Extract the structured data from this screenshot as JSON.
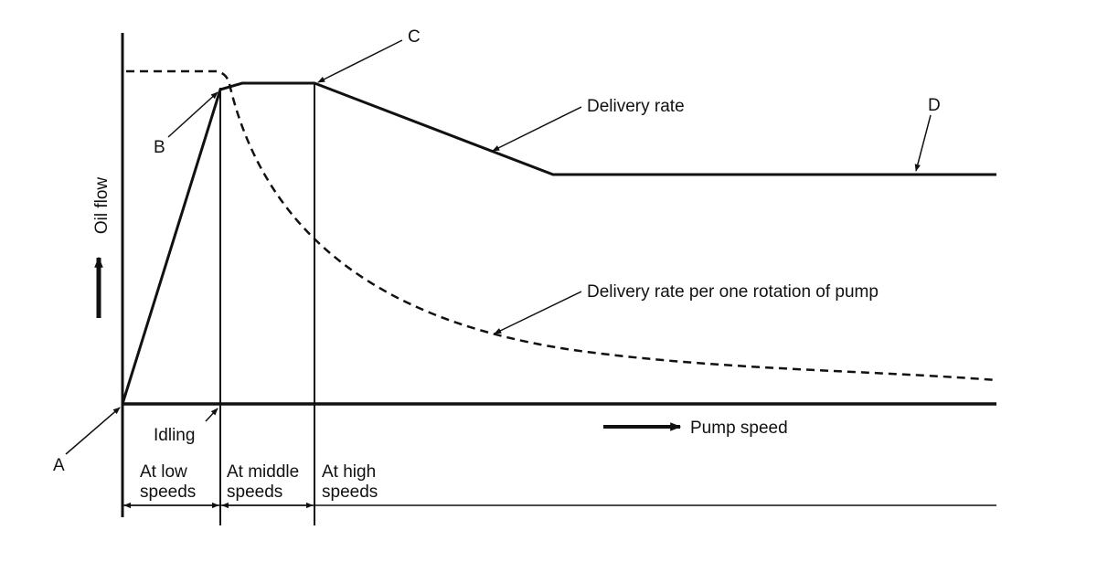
{
  "y_axis_label": "Oil flow",
  "x_axis_label": "Pump speed",
  "point_labels": {
    "a": "A",
    "b": "B",
    "c": "C",
    "d": "D"
  },
  "curve_labels": {
    "delivery_rate": "Delivery rate",
    "delivery_rate_per_rotation": "Delivery rate per one rotation of pump"
  },
  "idling_label": "Idling",
  "speed_ranges": {
    "low": [
      "At low",
      "speeds"
    ],
    "middle": [
      "At middle",
      "speeds"
    ],
    "high": [
      "At high",
      "speeds"
    ]
  }
}
